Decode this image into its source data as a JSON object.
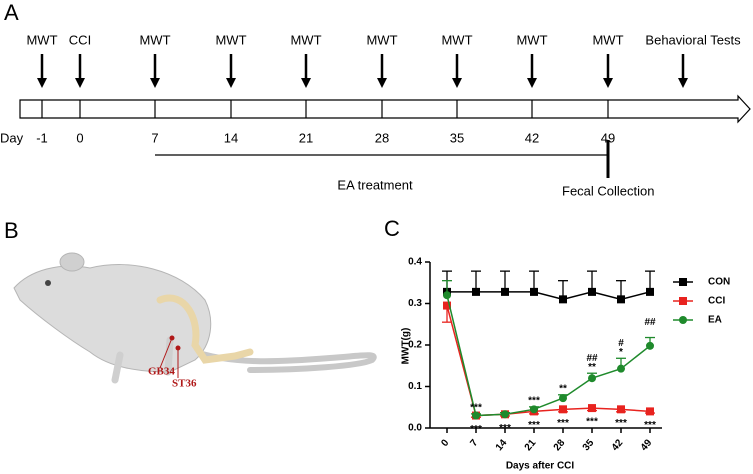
{
  "panels": {
    "a": "A",
    "b": "B",
    "c": "C"
  },
  "timeline": {
    "day_label": "Day",
    "events": [
      "MWT",
      "CCI",
      "MWT",
      "MWT",
      "MWT",
      "MWT",
      "MWT",
      "MWT",
      "MWT",
      "Behavioral Tests"
    ],
    "days": [
      "-1",
      "0",
      "7",
      "14",
      "21",
      "28",
      "35",
      "42",
      "49"
    ],
    "treatment": "EA treatment",
    "collection": "Fecal Collection"
  },
  "illustration": {
    "points": [
      "GB34",
      "ST36"
    ]
  },
  "chart_data": {
    "type": "line",
    "y_label": "MWT(g)",
    "x_label": "Days after CCI",
    "categories": [
      "0",
      "7",
      "14",
      "21",
      "28",
      "35",
      "42",
      "49"
    ],
    "ylim": [
      0,
      0.4
    ],
    "yticks": [
      {
        "value": 0,
        "label": "0.0"
      },
      0.1,
      0.2,
      0.3,
      0.4
    ],
    "series": [
      {
        "name": "CON",
        "color": "#000000",
        "marker": "square",
        "error_bars": "up",
        "values": [
          0.328,
          0.328,
          0.328,
          0.328,
          0.31,
          0.328,
          0.31,
          0.328
        ],
        "errors": [
          0.05,
          0.05,
          0.05,
          0.05,
          0.045,
          0.05,
          0.045,
          0.05
        ]
      },
      {
        "name": "CCI",
        "color": "#e8231f",
        "marker": "square",
        "error_bars": "down",
        "values": [
          0.295,
          0.03,
          0.033,
          0.04,
          0.045,
          0.048,
          0.045,
          0.04
        ],
        "errors": [
          0.04,
          0.004,
          0.004,
          0.006,
          0.006,
          0.006,
          0.006,
          0.004
        ]
      },
      {
        "name": "EA",
        "color": "#1f8a2c",
        "marker": "circle",
        "error_bars": "up",
        "values": [
          0.32,
          0.03,
          0.033,
          0.045,
          0.072,
          0.12,
          0.143,
          0.198
        ],
        "errors": [
          0.035,
          0.004,
          0.004,
          0.006,
          0.008,
          0.012,
          0.025,
          0.02
        ]
      }
    ],
    "annotations": {
      "above": [
        null,
        "***",
        null,
        "***",
        "**",
        "**",
        "*",
        null
      ],
      "hash": [
        null,
        null,
        null,
        null,
        null,
        "##",
        "#",
        "##"
      ],
      "below": [
        null,
        "***",
        "***",
        "***",
        "***",
        "***",
        "***",
        "***"
      ]
    },
    "legend": "right"
  }
}
